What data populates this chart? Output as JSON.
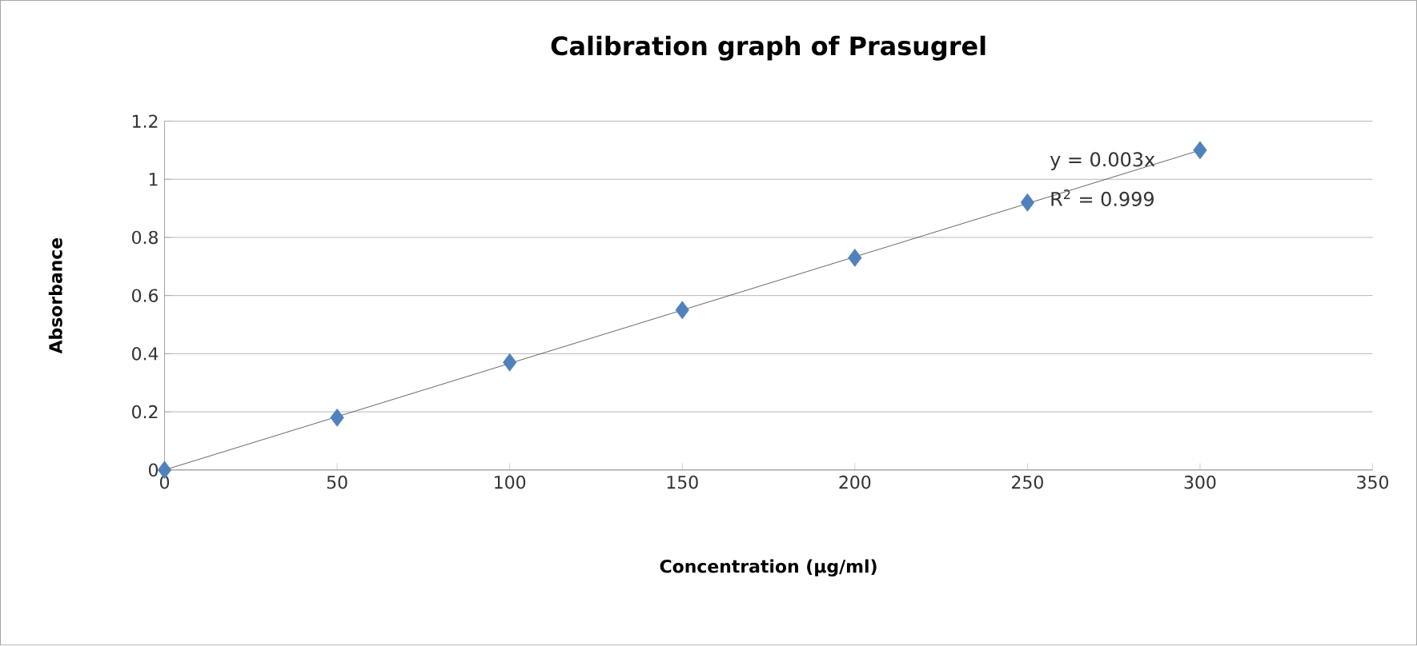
{
  "chart_data": {
    "type": "scatter",
    "title": "Calibration graph of Prasugrel",
    "xlabel": "Concentration (µg/ml)",
    "ylabel": "Absorbance",
    "series": [
      {
        "color": "#4f81bd",
        "marker": "diamond",
        "x": [
          0,
          50,
          100,
          150,
          200,
          250,
          300
        ],
        "values": [
          0,
          0.18,
          0.37,
          0.55,
          0.73,
          0.92,
          1.1
        ]
      },
      {
        "type": "line",
        "color": "#404040",
        "marker": "none",
        "x": [
          0,
          300
        ],
        "values": [
          0,
          1.1
        ]
      }
    ],
    "annotations": [
      "y = 0.003x",
      "R$^{2}$ = 0.999"
    ],
    "xlim": [
      0,
      350
    ],
    "xticks": [
      0,
      50,
      100,
      150,
      200,
      250,
      300,
      350
    ],
    "ylim": [
      0,
      1.2
    ],
    "yticks": [
      0,
      0.2,
      0.4,
      0.6,
      0.8,
      1,
      1.2
    ],
    "grid": "y"
  }
}
